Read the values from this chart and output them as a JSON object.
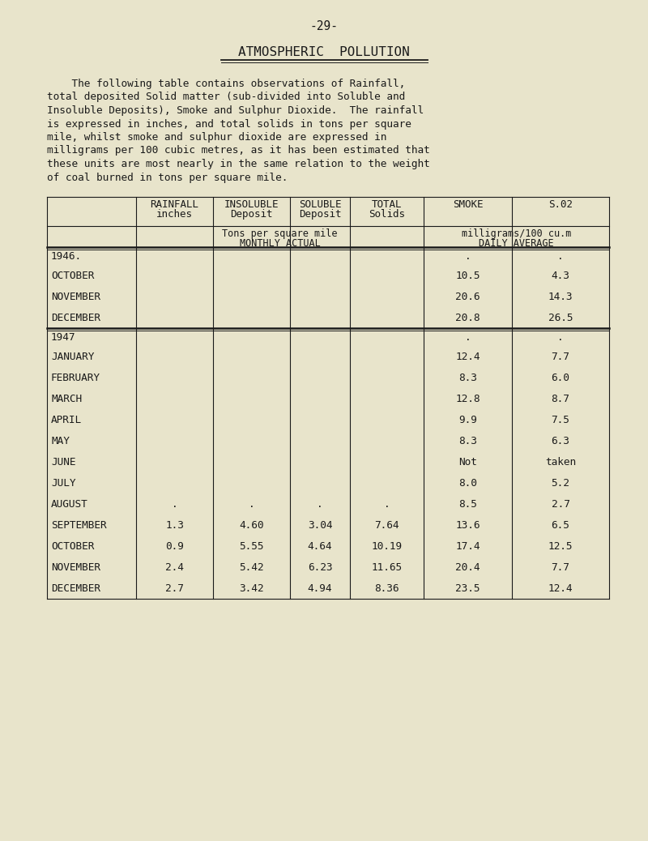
{
  "page_number": "-29-",
  "title": "ATMOSPHERIC  POLLUTION",
  "paragraph_lines": [
    "    The following table contains observations of Rainfall,",
    "total deposited Solid matter (sub-divided into Soluble and",
    "Insoluble Deposits), Smoke and Sulphur Dioxide.  The rainfall",
    "is expressed in inches, and total solids in tons per square",
    "mile, whilst smoke and sulphur dioxide are expressed in",
    "milligrams per 100 cubic metres, as it has been estimated that",
    "these units are most nearly in the same relation to the weight",
    "of coal burned in tons per square mile."
  ],
  "bg_color": "#e8e4cb",
  "text_color": "#1a1a1a",
  "rows": [
    {
      "label": "1946.",
      "is_year": true,
      "rainfall": "",
      "insoluble": "",
      "soluble": "",
      "total": "",
      "smoke": ".",
      "so2": "."
    },
    {
      "label": "OCTOBER",
      "is_year": false,
      "rainfall": "",
      "insoluble": "",
      "soluble": "",
      "total": "",
      "smoke": "10.5",
      "so2": "4.3"
    },
    {
      "label": "NOVEMBER",
      "is_year": false,
      "rainfall": "",
      "insoluble": "",
      "soluble": "",
      "total": "",
      "smoke": "20.6",
      "so2": "14.3"
    },
    {
      "label": "DECEMBER",
      "is_year": false,
      "rainfall": "",
      "insoluble": "",
      "soluble": "",
      "total": "",
      "smoke": "20.8",
      "so2": "26.5"
    },
    {
      "label": "1947",
      "is_year": true,
      "rainfall": "",
      "insoluble": "",
      "soluble": "",
      "total": "",
      "smoke": ".",
      "so2": "."
    },
    {
      "label": "JANUARY",
      "is_year": false,
      "rainfall": "",
      "insoluble": "",
      "soluble": "",
      "total": "",
      "smoke": "12.4",
      "so2": "7.7"
    },
    {
      "label": "FEBRUARY",
      "is_year": false,
      "rainfall": "",
      "insoluble": "",
      "soluble": "",
      "total": "",
      "smoke": "8.3",
      "so2": "6.0"
    },
    {
      "label": "MARCH",
      "is_year": false,
      "rainfall": "",
      "insoluble": "",
      "soluble": "",
      "total": "",
      "smoke": "12.8",
      "so2": "8.7"
    },
    {
      "label": "APRIL",
      "is_year": false,
      "rainfall": "",
      "insoluble": "",
      "soluble": "",
      "total": "",
      "smoke": "9.9",
      "so2": "7.5"
    },
    {
      "label": "MAY",
      "is_year": false,
      "rainfall": "",
      "insoluble": "",
      "soluble": "",
      "total": "",
      "smoke": "8.3",
      "so2": "6.3"
    },
    {
      "label": "JUNE",
      "is_year": false,
      "rainfall": "",
      "insoluble": "",
      "soluble": "",
      "total": "",
      "smoke": "Not",
      "so2": "taken"
    },
    {
      "label": "JULY",
      "is_year": false,
      "rainfall": "",
      "insoluble": "",
      "soluble": "",
      "total": "",
      "smoke": "8.0",
      "so2": "5.2"
    },
    {
      "label": "AUGUST",
      "is_year": false,
      "rainfall": ".",
      "insoluble": ".",
      "soluble": ".",
      "total": ".",
      "smoke": "8.5",
      "so2": "2.7"
    },
    {
      "label": "SEPTEMBER",
      "is_year": false,
      "rainfall": "1.3",
      "insoluble": "4.60",
      "soluble": "3.04",
      "total": "7.64",
      "smoke": "13.6",
      "so2": "6.5"
    },
    {
      "label": "OCTOBER",
      "is_year": false,
      "rainfall": "0.9",
      "insoluble": "5.55",
      "soluble": "4.64",
      "total": "10.19",
      "smoke": "17.4",
      "so2": "12.5"
    },
    {
      "label": "NOVEMBER",
      "is_year": false,
      "rainfall": "2.4",
      "insoluble": "5.42",
      "soluble": "6.23",
      "total": "11.65",
      "smoke": "20.4",
      "so2": "7.7"
    },
    {
      "label": "DECEMBER",
      "is_year": false,
      "rainfall": "2.7",
      "insoluble": "3.42",
      "soluble": "4.94",
      "total": "8.36",
      "smoke": "23.5",
      "so2": "12.4"
    }
  ]
}
